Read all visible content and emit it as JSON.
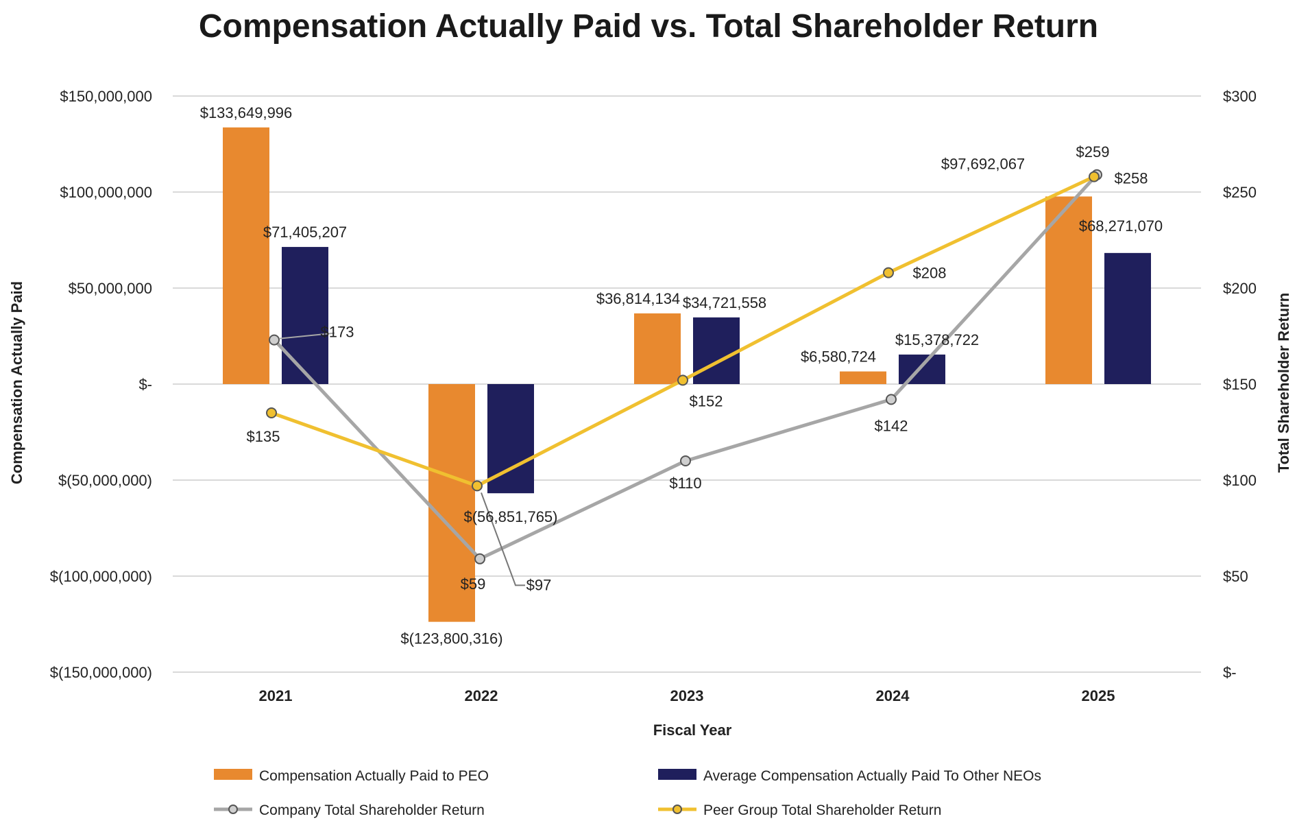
{
  "chart_data": {
    "type": "bar",
    "title": "Compensation Actually Paid vs. Total Shareholder Return",
    "xlabel": "Fiscal Year",
    "ylabel": "Compensation Actually Paid",
    "y2label": "Total Shareholder Return",
    "categories": [
      "2021",
      "2022",
      "2023",
      "2024",
      "2025"
    ],
    "ylim": [
      -150000000,
      150000000
    ],
    "y2lim": [
      0,
      300
    ],
    "yticks": [
      {
        "value": 150000000,
        "label": "$150,000,000"
      },
      {
        "value": 100000000,
        "label": "$100,000,000"
      },
      {
        "value": 50000000,
        "label": "$50,000,000"
      },
      {
        "value": 0,
        "label": "$-"
      },
      {
        "value": -50000000,
        "label": "$(50,000,000)"
      },
      {
        "value": -100000000,
        "label": "$(100,000,000)"
      },
      {
        "value": -150000000,
        "label": "$(150,000,000)"
      }
    ],
    "y2ticks": [
      {
        "value": 300,
        "label": "$300"
      },
      {
        "value": 250,
        "label": "$250"
      },
      {
        "value": 200,
        "label": "$200"
      },
      {
        "value": 150,
        "label": "$150"
      },
      {
        "value": 100,
        "label": "$100"
      },
      {
        "value": 50,
        "label": "$50"
      },
      {
        "value": 0,
        "label": "$-"
      }
    ],
    "grid": true,
    "legend_position": "bottom",
    "series": [
      {
        "name": "Compensation Actually Paid to PEO",
        "kind": "bar",
        "axis": "left",
        "color": "#E8892F",
        "values": [
          133649996,
          -123800316,
          36814134,
          6580724,
          97692067
        ],
        "labels": [
          "$133,649,996",
          "$(123,800,316)",
          "$36,814,134",
          "$6,580,724",
          "$97,692,067"
        ]
      },
      {
        "name": "Average Compensation Actually Paid To Other NEOs",
        "kind": "bar",
        "axis": "left",
        "color": "#1F1F5C",
        "values": [
          71405207,
          -56851765,
          34721558,
          15378722,
          68271070
        ],
        "labels": [
          "$71,405,207",
          "$(56,851,765)",
          "$34,721,558",
          "$15,378,722",
          "$68,271,070"
        ]
      },
      {
        "name": "Company Total Shareholder Return",
        "kind": "line",
        "axis": "right",
        "color": "#A6A6A6",
        "values": [
          173,
          59,
          110,
          142,
          259
        ],
        "labels": [
          "$173",
          "$59",
          "$110",
          "$142",
          "$259"
        ]
      },
      {
        "name": "Peer Group Total Shareholder Return",
        "kind": "line",
        "axis": "right",
        "color": "#F0C030",
        "values": [
          135,
          97,
          152,
          208,
          258
        ],
        "labels": [
          "$135",
          "$97",
          "$152",
          "$208",
          "$258"
        ]
      }
    ]
  }
}
